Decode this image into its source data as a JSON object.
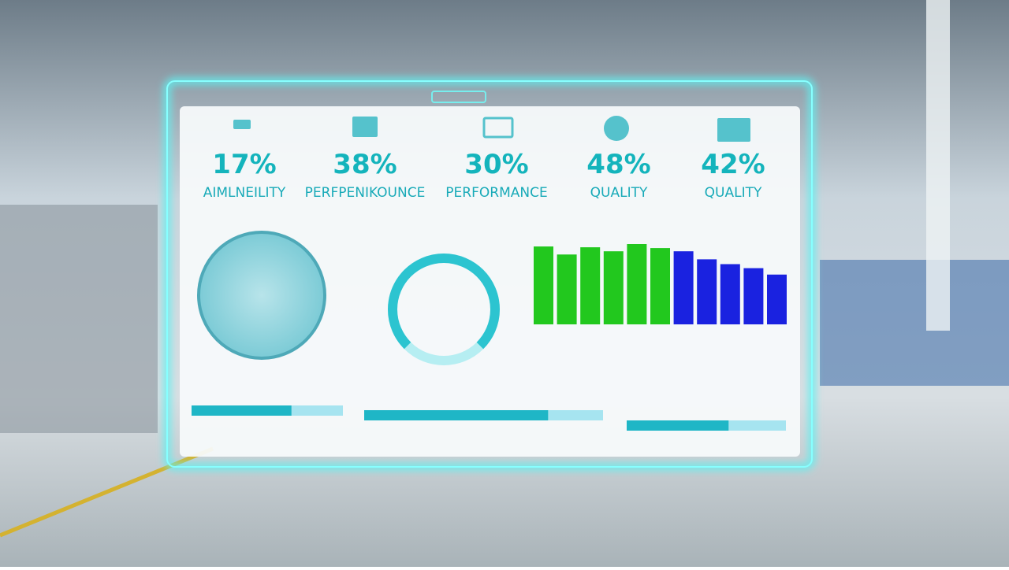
{
  "kpis": [
    {
      "value": "17%",
      "label": "AIMLNEILITY"
    },
    {
      "value": "38%",
      "label": "PERFPENIKOUNCE"
    },
    {
      "value": "30%",
      "label": "PERFORMANCE"
    },
    {
      "value": "48%",
      "label": "QUALITY"
    },
    {
      "value": "42%",
      "label": "QUALITY"
    }
  ],
  "chart_data": {
    "type": "bar",
    "categories": [
      null,
      null,
      null,
      null,
      null,
      null,
      null,
      null,
      null,
      null,
      null
    ],
    "values": [
      97,
      87,
      96,
      91,
      100,
      95,
      91,
      81,
      75,
      70,
      62
    ],
    "colors": [
      "#22c81e",
      "#22c81e",
      "#22c81e",
      "#22c81e",
      "#22c81e",
      "#22c81e",
      "#1a22e0",
      "#1a22e0",
      "#1a22e0",
      "#1a22e0",
      "#1a22e0"
    ],
    "ylim": [
      0,
      100
    ]
  },
  "ring_gauge": 75,
  "progress_bars": [
    66,
    77,
    64
  ]
}
